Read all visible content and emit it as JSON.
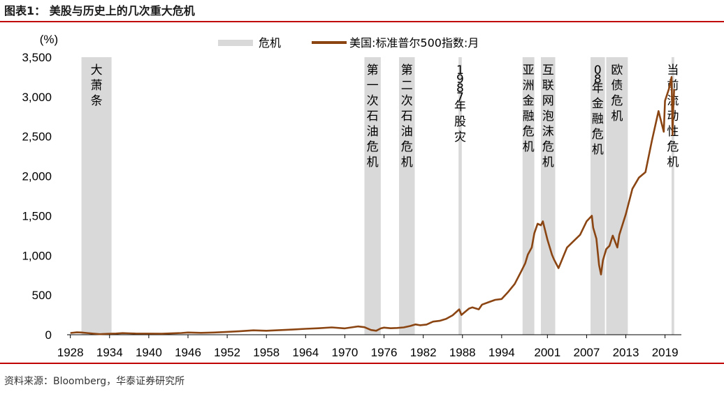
{
  "figure": {
    "title": "图表1：  美股与历史上的几次重大危机",
    "source": "资料来源：Bloomberg，华泰证券研究所"
  },
  "chart_data": {
    "type": "line",
    "ylabel": "(%)",
    "ylim": [
      0,
      3500
    ],
    "yticks": [
      0,
      500,
      1000,
      1500,
      2000,
      2500,
      3000,
      3500
    ],
    "ytick_labels": [
      "0",
      "500",
      "1,000",
      "1,500",
      "2,000",
      "2,500",
      "3,000",
      "3,500"
    ],
    "xlim": [
      1927.5,
      2021.5
    ],
    "xticks": [
      1928,
      1934,
      1940,
      1946,
      1952,
      1958,
      1964,
      1970,
      1976,
      1982,
      1988,
      1994,
      2001,
      2007,
      2013,
      2019
    ],
    "xtick_labels": [
      "1928",
      "1934",
      "1940",
      "1946",
      "1952",
      "1958",
      "1964",
      "1970",
      "1976",
      "1982",
      "1988",
      "1994",
      "2001",
      "2007",
      "2013",
      "2019"
    ],
    "legend": {
      "placement": "top-center",
      "items": [
        {
          "label": "危机",
          "kind": "band",
          "color": "#d9d9d9"
        },
        {
          "label": "美国:标准普尔500指数:月",
          "kind": "line",
          "color": "#8b4513"
        }
      ]
    },
    "crises": [
      {
        "label": "大萧条",
        "start": 1929.7,
        "end": 1934.3
      },
      {
        "label": "第一次石油危机",
        "start": 1973.0,
        "end": 1975.5
      },
      {
        "label": "第二次石油危机",
        "start": 1978.3,
        "end": 1980.7
      },
      {
        "label": "1987年股灾",
        "start": 1987.4,
        "end": 1987.9
      },
      {
        "label": "亚洲金融危机",
        "start": 1997.2,
        "end": 1999.0
      },
      {
        "label": "互联网泡沫危机",
        "start": 2000.0,
        "end": 2002.2
      },
      {
        "label": "08年金融危机",
        "start": 2007.6,
        "end": 2009.8
      },
      {
        "label": "欧债危机",
        "start": 2010.0,
        "end": 2013.3
      },
      {
        "label": "当前流动性危机",
        "start": 2020.0,
        "end": 2020.4
      }
    ],
    "series": [
      {
        "name": "美国:标准普尔500指数:月",
        "color": "#8b4513",
        "x": [
          1928,
          1929,
          1929.7,
          1930.5,
          1931.5,
          1932.5,
          1933,
          1934,
          1935,
          1936,
          1937,
          1938,
          1940,
          1942,
          1945,
          1946,
          1948,
          1950,
          1952,
          1954,
          1956,
          1958,
          1960,
          1962,
          1964,
          1966,
          1968,
          1970,
          1971,
          1972,
          1973,
          1974,
          1974.8,
          1975.5,
          1976,
          1977,
          1978,
          1979,
          1980,
          1980.8,
          1981.5,
          1982.5,
          1983.5,
          1984.5,
          1985.5,
          1986.5,
          1987.5,
          1987.85,
          1988,
          1989,
          1989.5,
          1990.5,
          1991,
          1992,
          1993,
          1994,
          1995,
          1996,
          1997,
          1997.6,
          1998,
          1998.6,
          1999,
          1999.5,
          2000,
          2000.3,
          2001,
          2001.7,
          2002,
          2002.7,
          2003,
          2003.5,
          2004,
          2005,
          2006,
          2007,
          2007.8,
          2008,
          2008.5,
          2008.9,
          2009.2,
          2009.5,
          2010,
          2010.5,
          2011,
          2011.7,
          2012,
          2013,
          2014,
          2015,
          2016,
          2017,
          2018,
          2018.8,
          2019,
          2019.6,
          2020,
          2020.15,
          2020.25,
          2020.4
        ],
        "values": [
          22,
          30,
          28,
          22,
          14,
          7,
          10,
          12,
          15,
          20,
          18,
          15,
          14,
          12,
          22,
          28,
          24,
          28,
          36,
          45,
          55,
          50,
          58,
          65,
          75,
          82,
          92,
          80,
          92,
          105,
          95,
          60,
          50,
          80,
          90,
          82,
          85,
          92,
          110,
          130,
          120,
          128,
          165,
          175,
          200,
          245,
          320,
          250,
          260,
          330,
          345,
          320,
          380,
          410,
          440,
          450,
          540,
          640,
          800,
          900,
          1010,
          1100,
          1280,
          1400,
          1380,
          1430,
          1200,
          1010,
          950,
          840,
          900,
          1000,
          1100,
          1180,
          1260,
          1430,
          1500,
          1350,
          1210,
          880,
          760,
          940,
          1080,
          1120,
          1250,
          1100,
          1260,
          1520,
          1840,
          1980,
          2050,
          2450,
          2820,
          2560,
          2950,
          3100,
          3250,
          2520,
          2840,
          3100
        ]
      }
    ]
  }
}
